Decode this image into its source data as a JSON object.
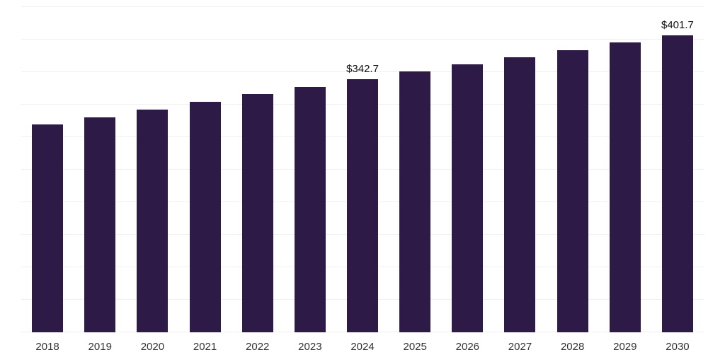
{
  "chart_data": {
    "type": "bar",
    "title": "",
    "xlabel": "",
    "ylabel": "",
    "categories": [
      "2018",
      "2019",
      "2020",
      "2021",
      "2022",
      "2023",
      "2024",
      "2025",
      "2026",
      "2027",
      "2028",
      "2029",
      "2030"
    ],
    "values": [
      280.8,
      291.1,
      301.5,
      311.8,
      322.1,
      332.4,
      342.7,
      352.5,
      362.4,
      372.2,
      382.0,
      391.9,
      401.7
    ],
    "value_prefix": "$",
    "labeled_points": [
      {
        "category": "2024",
        "text": "$342.7"
      },
      {
        "category": "2030",
        "text": "$401.7"
      }
    ],
    "ylim": [
      0,
      440
    ],
    "gridlines": {
      "orientation": "horizontal",
      "count": 10
    },
    "legend": "none",
    "bar_color": "#2e1a47",
    "gridline_color": "#efefef",
    "background": "#ffffff"
  }
}
